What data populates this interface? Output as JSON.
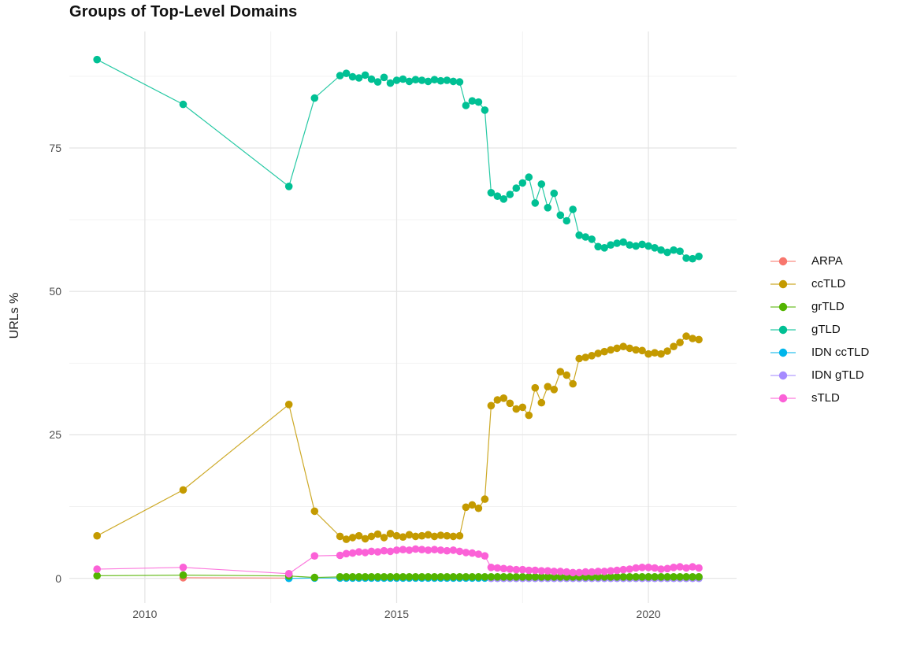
{
  "chart_data": {
    "type": "line",
    "title": "Groups of Top-Level Domains",
    "xlabel": "",
    "ylabel": "URLs %",
    "x_ticks": [
      2010,
      2015,
      2020
    ],
    "x_tick_labels": [
      "2010",
      "2015",
      "2020"
    ],
    "x_minor": [
      2012.5,
      2017.5
    ],
    "y_ticks": [
      0,
      25,
      50,
      75
    ],
    "y_tick_labels": [
      "0",
      "25",
      "50",
      "75"
    ],
    "y_minor": [
      12.5,
      37.5,
      62.5,
      87.5
    ],
    "xlim": [
      2008.5,
      2021.75
    ],
    "ylim": [
      -4.3,
      95.3
    ],
    "grid": true,
    "legend_position": "right",
    "series": [
      {
        "name": "ARPA",
        "color": "#F8766D",
        "points": [
          [
            2010.76,
            0.1
          ],
          [
            2012.86,
            0.05
          ]
        ]
      },
      {
        "name": "ccTLD",
        "color": "#C49A00",
        "points": [
          [
            2009.05,
            7.4
          ],
          [
            2010.76,
            15.4
          ],
          [
            2012.86,
            30.3
          ],
          [
            2013.37,
            11.7
          ],
          [
            2013.875,
            7.3
          ],
          [
            2014,
            6.8
          ],
          [
            2014.125,
            7.1
          ],
          [
            2014.25,
            7.4
          ],
          [
            2014.375,
            6.9
          ],
          [
            2014.5,
            7.3
          ],
          [
            2014.625,
            7.7
          ],
          [
            2014.75,
            7.1
          ],
          [
            2014.875,
            7.8
          ],
          [
            2015,
            7.4
          ],
          [
            2015.125,
            7.2
          ],
          [
            2015.25,
            7.6
          ],
          [
            2015.375,
            7.3
          ],
          [
            2015.5,
            7.4
          ],
          [
            2015.625,
            7.6
          ],
          [
            2015.75,
            7.3
          ],
          [
            2015.875,
            7.5
          ],
          [
            2016,
            7.4
          ],
          [
            2016.125,
            7.3
          ],
          [
            2016.25,
            7.4
          ],
          [
            2016.375,
            12.4
          ],
          [
            2016.5,
            12.8
          ],
          [
            2016.625,
            12.2
          ],
          [
            2016.75,
            13.8
          ],
          [
            2016.875,
            30.1
          ],
          [
            2017,
            31.1
          ],
          [
            2017.125,
            31.4
          ],
          [
            2017.25,
            30.5
          ],
          [
            2017.375,
            29.5
          ],
          [
            2017.5,
            29.8
          ],
          [
            2017.625,
            28.4
          ],
          [
            2017.75,
            33.2
          ],
          [
            2017.875,
            30.6
          ],
          [
            2018,
            33.4
          ],
          [
            2018.125,
            32.9
          ],
          [
            2018.25,
            36
          ],
          [
            2018.375,
            35.4
          ],
          [
            2018.5,
            33.9
          ],
          [
            2018.625,
            38.3
          ],
          [
            2018.75,
            38.5
          ],
          [
            2018.875,
            38.8
          ],
          [
            2019,
            39.2
          ],
          [
            2019.125,
            39.5
          ],
          [
            2019.25,
            39.8
          ],
          [
            2019.375,
            40.1
          ],
          [
            2019.5,
            40.4
          ],
          [
            2019.625,
            40.1
          ],
          [
            2019.75,
            39.8
          ],
          [
            2019.875,
            39.7
          ],
          [
            2020,
            39.1
          ],
          [
            2020.125,
            39.3
          ],
          [
            2020.25,
            39.1
          ],
          [
            2020.375,
            39.6
          ],
          [
            2020.5,
            40.4
          ],
          [
            2020.625,
            41.1
          ],
          [
            2020.75,
            42.2
          ],
          [
            2020.875,
            41.8
          ],
          [
            2021,
            41.6
          ]
        ]
      },
      {
        "name": "grTLD",
        "color": "#53B400",
        "points": [
          [
            2009.05,
            0.45
          ],
          [
            2010.76,
            0.55
          ],
          [
            2012.86,
            0.4
          ],
          [
            2013.37,
            0.15
          ]
        ],
        "flat": {
          "from": 2013.875,
          "to": 2021,
          "step": 0.125,
          "value": 0.25
        }
      },
      {
        "name": "gTLD",
        "color": "#00C094",
        "points": [
          [
            2009.05,
            90.4
          ],
          [
            2010.76,
            82.6
          ],
          [
            2012.86,
            68.3
          ],
          [
            2013.37,
            83.7
          ],
          [
            2013.875,
            87.6
          ],
          [
            2014,
            88
          ],
          [
            2014.125,
            87.4
          ],
          [
            2014.25,
            87.2
          ],
          [
            2014.375,
            87.7
          ],
          [
            2014.5,
            87
          ],
          [
            2014.625,
            86.5
          ],
          [
            2014.75,
            87.3
          ],
          [
            2014.875,
            86.3
          ],
          [
            2015,
            86.8
          ],
          [
            2015.125,
            87
          ],
          [
            2015.25,
            86.6
          ],
          [
            2015.375,
            86.9
          ],
          [
            2015.5,
            86.8
          ],
          [
            2015.625,
            86.6
          ],
          [
            2015.75,
            86.9
          ],
          [
            2015.875,
            86.7
          ],
          [
            2016,
            86.8
          ],
          [
            2016.125,
            86.6
          ],
          [
            2016.25,
            86.5
          ],
          [
            2016.375,
            82.4
          ],
          [
            2016.5,
            83.2
          ],
          [
            2016.625,
            83
          ],
          [
            2016.75,
            81.6
          ],
          [
            2016.875,
            67.2
          ],
          [
            2017,
            66.6
          ],
          [
            2017.125,
            66.1
          ],
          [
            2017.25,
            66.9
          ],
          [
            2017.375,
            68
          ],
          [
            2017.5,
            68.9
          ],
          [
            2017.625,
            69.9
          ],
          [
            2017.75,
            65.4
          ],
          [
            2017.875,
            68.7
          ],
          [
            2018,
            64.6
          ],
          [
            2018.125,
            67.1
          ],
          [
            2018.25,
            63.3
          ],
          [
            2018.375,
            62.3
          ],
          [
            2018.5,
            64.3
          ],
          [
            2018.625,
            59.8
          ],
          [
            2018.75,
            59.5
          ],
          [
            2018.875,
            59.1
          ],
          [
            2019,
            57.8
          ],
          [
            2019.125,
            57.6
          ],
          [
            2019.25,
            58.1
          ],
          [
            2019.375,
            58.4
          ],
          [
            2019.5,
            58.6
          ],
          [
            2019.625,
            58.1
          ],
          [
            2019.75,
            57.9
          ],
          [
            2019.875,
            58.2
          ],
          [
            2020,
            57.9
          ],
          [
            2020.125,
            57.6
          ],
          [
            2020.25,
            57.2
          ],
          [
            2020.375,
            56.8
          ],
          [
            2020.5,
            57.2
          ],
          [
            2020.625,
            57
          ],
          [
            2020.75,
            55.8
          ],
          [
            2020.875,
            55.7
          ],
          [
            2021,
            56.1
          ]
        ]
      },
      {
        "name": "IDN ccTLD",
        "color": "#00B6EB",
        "points": [
          [
            2012.86,
            0
          ],
          [
            2013.37,
            0.05
          ]
        ],
        "flat": {
          "from": 2013.875,
          "to": 2021,
          "step": 0.125,
          "value": 0.05
        }
      },
      {
        "name": "IDN gTLD",
        "color": "#A58AFF",
        "points": [],
        "flat": {
          "from": 2016.875,
          "to": 2021,
          "step": 0.125,
          "value": 0
        }
      },
      {
        "name": "sTLD",
        "color": "#FB61D7",
        "points": [
          [
            2009.05,
            1.6
          ],
          [
            2010.76,
            1.9
          ],
          [
            2012.86,
            0.8
          ],
          [
            2013.37,
            3.9
          ],
          [
            2013.875,
            4
          ],
          [
            2014,
            4.3
          ],
          [
            2014.125,
            4.4
          ],
          [
            2014.25,
            4.6
          ],
          [
            2014.375,
            4.5
          ],
          [
            2014.5,
            4.7
          ],
          [
            2014.625,
            4.6
          ],
          [
            2014.75,
            4.8
          ],
          [
            2014.875,
            4.7
          ],
          [
            2015,
            4.9
          ],
          [
            2015.125,
            5
          ],
          [
            2015.25,
            4.9
          ],
          [
            2015.375,
            5.1
          ],
          [
            2015.5,
            5
          ],
          [
            2015.625,
            4.9
          ],
          [
            2015.75,
            5
          ],
          [
            2015.875,
            4.9
          ],
          [
            2016,
            4.8
          ],
          [
            2016.125,
            4.9
          ],
          [
            2016.25,
            4.7
          ],
          [
            2016.375,
            4.5
          ],
          [
            2016.5,
            4.4
          ],
          [
            2016.625,
            4.2
          ],
          [
            2016.75,
            3.9
          ],
          [
            2016.875,
            1.9
          ],
          [
            2017,
            1.8
          ],
          [
            2017.125,
            1.7
          ],
          [
            2017.25,
            1.6
          ],
          [
            2017.375,
            1.5
          ],
          [
            2017.5,
            1.5
          ],
          [
            2017.625,
            1.4
          ],
          [
            2017.75,
            1.4
          ],
          [
            2017.875,
            1.3
          ],
          [
            2018,
            1.3
          ],
          [
            2018.125,
            1.2
          ],
          [
            2018.25,
            1.2
          ],
          [
            2018.375,
            1.1
          ],
          [
            2018.5,
            1
          ],
          [
            2018.625,
            1
          ],
          [
            2018.75,
            1.1
          ],
          [
            2018.875,
            1.1
          ],
          [
            2019,
            1.2
          ],
          [
            2019.125,
            1.2
          ],
          [
            2019.25,
            1.3
          ],
          [
            2019.375,
            1.4
          ],
          [
            2019.5,
            1.5
          ],
          [
            2019.625,
            1.6
          ],
          [
            2019.75,
            1.8
          ],
          [
            2019.875,
            1.9
          ],
          [
            2020,
            1.9
          ],
          [
            2020.125,
            1.8
          ],
          [
            2020.25,
            1.6
          ],
          [
            2020.375,
            1.7
          ],
          [
            2020.5,
            1.9
          ],
          [
            2020.625,
            2
          ],
          [
            2020.75,
            1.8
          ],
          [
            2020.875,
            2
          ],
          [
            2021,
            1.8
          ]
        ]
      }
    ],
    "draw_order": [
      0,
      4,
      5,
      2,
      1,
      3,
      6
    ],
    "style": {
      "grid_major_color": "#E3E3E3",
      "grid_minor_color": "#F1F1F1",
      "point_radius": 4.8,
      "line_width": 1.2
    }
  }
}
